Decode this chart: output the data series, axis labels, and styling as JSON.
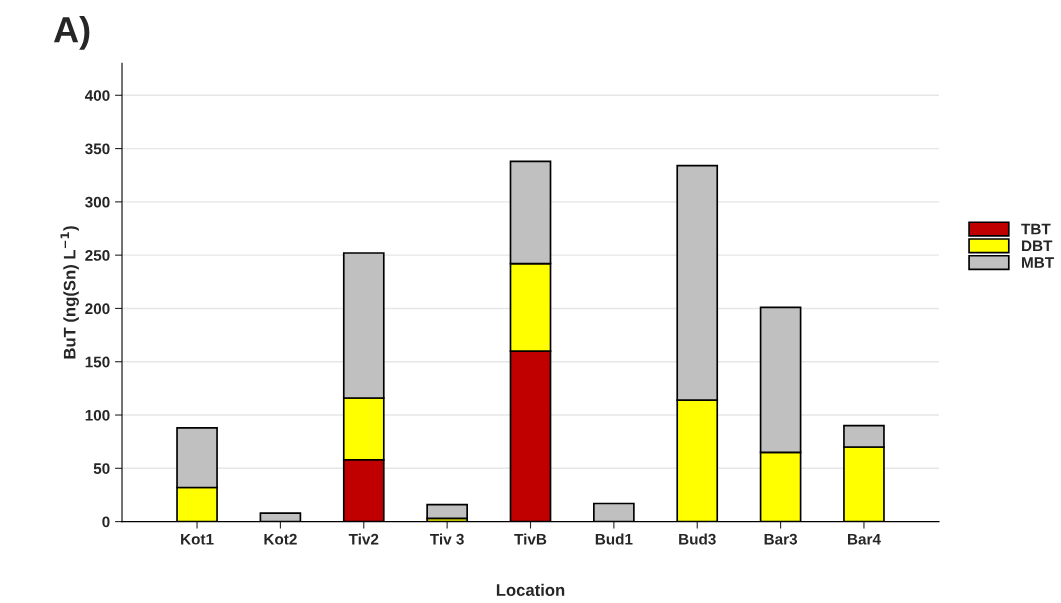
{
  "chart_data": {
    "type": "bar",
    "title": "A)",
    "xlabel": "Location",
    "ylabel": "BuT (ng(Sn) L$^{−1}$)",
    "categories": [
      "Kot1",
      "Kot2",
      "Tiv2",
      "Tiv 3",
      "TivB",
      "Bud1",
      "Bud3",
      "Bar3",
      "Bar4"
    ],
    "stacked": true,
    "series": [
      {
        "name": "TBT",
        "color": "#c00000",
        "values": [
          0,
          0,
          58,
          null,
          160,
          0,
          0,
          null,
          0
        ]
      },
      {
        "name": "DBT",
        "color": "#ffff00",
        "values": [
          32,
          null,
          58,
          3,
          82,
          null,
          114,
          65,
          70
        ]
      },
      {
        "name": "MBT",
        "color": "#c0c0c0",
        "values": [
          56,
          8,
          136,
          13,
          96,
          17,
          220,
          136,
          20
        ]
      }
    ],
    "ylim": [
      0,
      430
    ],
    "yticks": [
      0,
      50,
      100,
      150,
      200,
      250,
      300,
      350,
      400
    ],
    "grid": "y",
    "legend": "right"
  }
}
